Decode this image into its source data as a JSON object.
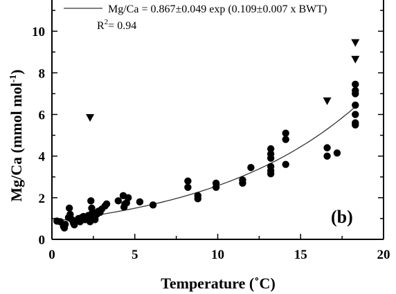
{
  "chart_data": {
    "type": "scatter",
    "panel_label": "(b)",
    "xlabel": "Temperature (˚C)",
    "ylabel_main": "Mg/Ca (mmol mol",
    "ylabel_sup": "-1",
    "ylabel_end": ")",
    "xlim": [
      0,
      20
    ],
    "ylim": [
      0,
      11.5
    ],
    "x_ticks": [
      0,
      5,
      10,
      15,
      20
    ],
    "y_ticks": [
      0,
      2,
      4,
      6,
      8,
      10
    ],
    "grid": false,
    "legend": {
      "placement": "top-left",
      "equation": "Mg/Ca = 0.867±0.049 exp (0.109±0.007 x BWT)",
      "r2_prefix": "R",
      "r2_sup": "2",
      "r2_suffix": "= 0.94"
    },
    "fit": {
      "a": 0.867,
      "b": 0.109,
      "x_range": [
        0.3,
        18.3
      ]
    },
    "series": [
      {
        "marker": "circle",
        "points": [
          [
            0.3,
            0.88
          ],
          [
            0.5,
            0.85
          ],
          [
            0.7,
            0.62
          ],
          [
            0.75,
            0.55
          ],
          [
            0.8,
            0.72
          ],
          [
            1.0,
            1.05
          ],
          [
            1.05,
            1.5
          ],
          [
            1.1,
            1.2
          ],
          [
            1.2,
            0.95
          ],
          [
            1.3,
            0.78
          ],
          [
            1.35,
            0.7
          ],
          [
            1.5,
            0.9
          ],
          [
            1.6,
            1.0
          ],
          [
            1.7,
            0.85
          ],
          [
            1.8,
            1.05
          ],
          [
            1.9,
            1.1
          ],
          [
            2.0,
            0.95
          ],
          [
            2.1,
            1.0
          ],
          [
            2.2,
            1.15
          ],
          [
            2.3,
            0.85
          ],
          [
            2.35,
            1.85
          ],
          [
            2.4,
            1.5
          ],
          [
            2.45,
            1.3
          ],
          [
            2.5,
            1.05
          ],
          [
            2.6,
            0.95
          ],
          [
            2.7,
            1.2
          ],
          [
            2.8,
            1.35
          ],
          [
            2.9,
            1.3
          ],
          [
            3.0,
            1.45
          ],
          [
            3.2,
            1.6
          ],
          [
            3.3,
            1.7
          ],
          [
            4.0,
            1.85
          ],
          [
            4.3,
            2.1
          ],
          [
            4.35,
            1.55
          ],
          [
            4.4,
            1.7
          ],
          [
            4.5,
            1.75
          ],
          [
            4.6,
            2.0
          ],
          [
            5.3,
            1.8
          ],
          [
            6.1,
            1.65
          ],
          [
            8.2,
            2.8
          ],
          [
            8.2,
            2.5
          ],
          [
            8.8,
            2.1
          ],
          [
            8.8,
            1.95
          ],
          [
            9.9,
            2.7
          ],
          [
            9.9,
            2.5
          ],
          [
            11.5,
            2.85
          ],
          [
            11.5,
            2.7
          ],
          [
            12.0,
            3.45
          ],
          [
            13.2,
            4.35
          ],
          [
            13.2,
            4.1
          ],
          [
            13.2,
            3.9
          ],
          [
            13.2,
            3.5
          ],
          [
            13.2,
            3.3
          ],
          [
            13.2,
            3.15
          ],
          [
            14.1,
            5.1
          ],
          [
            14.1,
            4.8
          ],
          [
            14.1,
            3.6
          ],
          [
            16.6,
            4.4
          ],
          [
            16.6,
            4.0
          ],
          [
            17.2,
            4.15
          ],
          [
            18.3,
            7.45
          ],
          [
            18.3,
            7.15
          ],
          [
            18.3,
            7.0
          ],
          [
            18.3,
            6.45
          ],
          [
            18.3,
            6.0
          ],
          [
            18.3,
            5.6
          ],
          [
            18.3,
            5.5
          ]
        ]
      },
      {
        "marker": "triangle-down",
        "points": [
          [
            2.3,
            5.85
          ],
          [
            16.6,
            6.65
          ],
          [
            18.3,
            8.65
          ],
          [
            18.3,
            9.45
          ]
        ]
      }
    ]
  }
}
